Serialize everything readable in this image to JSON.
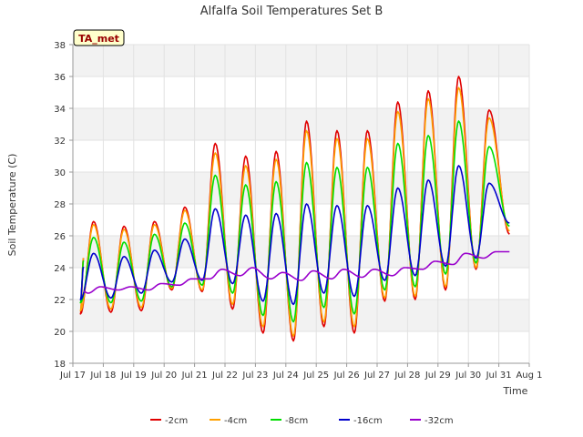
{
  "chart_data": {
    "type": "line",
    "title": "Alfalfa Soil Temperatures Set B",
    "xlabel": "Time",
    "ylabel": "Soil Temperature (C)",
    "station_label": "TA_met",
    "ylim": [
      18,
      38
    ],
    "yticks": [
      18,
      20,
      22,
      24,
      26,
      28,
      30,
      32,
      34,
      36,
      38
    ],
    "xlim": [
      17,
      32
    ],
    "xticks": [
      {
        "v": 17,
        "label": "Jul 17"
      },
      {
        "v": 18,
        "label": "Jul 18"
      },
      {
        "v": 19,
        "label": "Jul 19"
      },
      {
        "v": 20,
        "label": "Jul 20"
      },
      {
        "v": 21,
        "label": "Jul 21"
      },
      {
        "v": 22,
        "label": "Jul 22"
      },
      {
        "v": 23,
        "label": "Jul 23"
      },
      {
        "v": 24,
        "label": "Jul 24"
      },
      {
        "v": 25,
        "label": "Jul 25"
      },
      {
        "v": 26,
        "label": "Jul 26"
      },
      {
        "v": 27,
        "label": "Jul 27"
      },
      {
        "v": 28,
        "label": "Jul 28"
      },
      {
        "v": 29,
        "label": "Jul 29"
      },
      {
        "v": 30,
        "label": "Jul 30"
      },
      {
        "v": 31,
        "label": "Jul 31"
      },
      {
        "v": 32,
        "label": "Aug 1"
      }
    ],
    "grid": true,
    "legend_position": "bottom",
    "series": [
      {
        "name": "-2cm",
        "color": "#e00000",
        "mins": [
          21.1,
          21.2,
          21.3,
          22.6,
          22.5,
          21.4,
          19.9,
          19.4,
          20.3,
          19.9,
          21.9,
          22.0,
          22.6,
          23.9
        ],
        "maxs": [
          26.9,
          26.6,
          26.9,
          27.8,
          31.8,
          31.0,
          31.3,
          33.2,
          32.6,
          32.6,
          34.4,
          35.1,
          36.0,
          33.9
        ],
        "end": 26.1
      },
      {
        "name": "-4cm",
        "color": "#ffa000",
        "mins": [
          21.3,
          21.4,
          21.5,
          22.7,
          22.6,
          21.7,
          20.3,
          19.7,
          20.6,
          20.3,
          22.1,
          22.2,
          22.8,
          24.0
        ],
        "maxs": [
          26.7,
          26.4,
          26.7,
          27.6,
          31.2,
          30.4,
          30.8,
          32.6,
          32.1,
          32.1,
          33.8,
          34.6,
          35.3,
          33.4
        ],
        "end": 26.3
      },
      {
        "name": "-8cm",
        "color": "#00dd00",
        "mins": [
          21.8,
          21.8,
          21.9,
          22.8,
          22.9,
          22.4,
          21.0,
          20.6,
          21.5,
          21.1,
          22.6,
          22.8,
          23.6,
          24.3
        ],
        "maxs": [
          25.9,
          25.6,
          26.1,
          26.8,
          29.8,
          29.2,
          29.4,
          30.6,
          30.3,
          30.3,
          31.8,
          32.3,
          33.2,
          31.6
        ],
        "end": 26.6
      },
      {
        "name": "-16cm",
        "color": "#0000cc",
        "mins": [
          22.0,
          22.1,
          22.4,
          23.1,
          23.2,
          23.0,
          21.9,
          21.7,
          22.4,
          22.2,
          23.2,
          23.5,
          24.1,
          24.6
        ],
        "maxs": [
          24.9,
          24.7,
          25.1,
          25.8,
          27.7,
          27.3,
          27.4,
          28.0,
          27.9,
          27.9,
          29.0,
          29.5,
          30.4,
          29.3
        ],
        "end": 26.8
      },
      {
        "name": "-32cm",
        "color": "#9900cc",
        "start": 22.5,
        "baseline": [
          22.4,
          22.6,
          22.6,
          22.9,
          23.3,
          23.5,
          23.3,
          23.2,
          23.3,
          23.4,
          23.5,
          23.9,
          24.2,
          24.6
        ],
        "peaks": [
          22.8,
          22.8,
          23.0,
          23.3,
          23.9,
          24.0,
          23.7,
          23.8,
          23.9,
          23.9,
          24.0,
          24.4,
          24.9,
          25.0
        ],
        "end": 25.0
      }
    ]
  }
}
